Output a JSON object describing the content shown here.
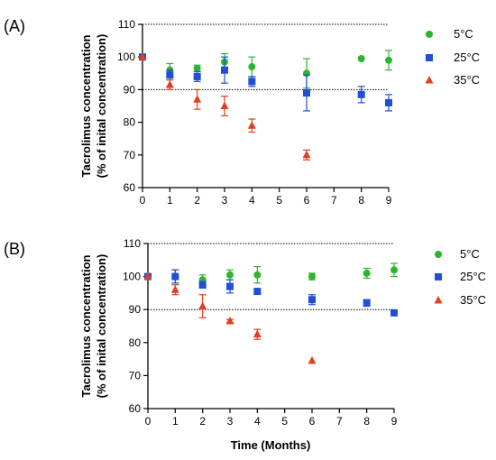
{
  "figure": {
    "x_title": "Time (Months)"
  },
  "chart_data": [
    {
      "panel_label": "(A)",
      "type": "scatter",
      "ylabel_line1": "Tacrolimus concentration",
      "ylabel_line2": "(% of inital concentration)",
      "xlabel": "",
      "xlim": [
        0,
        9
      ],
      "ylim": [
        60,
        110
      ],
      "x_ticks": [
        "0",
        "1",
        "2",
        "3",
        "4",
        "5",
        "6",
        "7",
        "8",
        "9"
      ],
      "y_ticks": [
        "60",
        "70",
        "80",
        "90",
        "100",
        "110"
      ],
      "reference_lines": [
        90,
        110
      ],
      "legend_position": "right",
      "series": [
        {
          "name": "5°C",
          "color": "#2db52d",
          "marker": "circle",
          "points": [
            {
              "x": 0,
              "y": 100,
              "err": 0
            },
            {
              "x": 1,
              "y": 96,
              "err": 2
            },
            {
              "x": 2,
              "y": 96.5,
              "err": 1
            },
            {
              "x": 3,
              "y": 98.5,
              "err": 2.5
            },
            {
              "x": 4,
              "y": 97,
              "err": 3
            },
            {
              "x": 6,
              "y": 95,
              "err": 4.5
            },
            {
              "x": 8,
              "y": 99.5,
              "err": 0
            },
            {
              "x": 9,
              "y": 99,
              "err": 3
            }
          ]
        },
        {
          "name": "25°C",
          "color": "#1f4fd6",
          "marker": "square",
          "points": [
            {
              "x": 0,
              "y": 100,
              "err": 0
            },
            {
              "x": 1,
              "y": 94.5,
              "err": 1.5
            },
            {
              "x": 2,
              "y": 94,
              "err": 1.5
            },
            {
              "x": 3,
              "y": 96,
              "err": 4
            },
            {
              "x": 4,
              "y": 92.5,
              "err": 1.5
            },
            {
              "x": 6,
              "y": 89,
              "err": 5.5
            },
            {
              "x": 8,
              "y": 88.5,
              "err": 2.5
            },
            {
              "x": 9,
              "y": 86,
              "err": 2.5
            }
          ]
        },
        {
          "name": "35°C",
          "color": "#e0401f",
          "marker": "triangle",
          "points": [
            {
              "x": 0,
              "y": 100,
              "err": 0
            },
            {
              "x": 1,
              "y": 91.5,
              "err": 1.5
            },
            {
              "x": 2,
              "y": 87,
              "err": 3
            },
            {
              "x": 3,
              "y": 85,
              "err": 3
            },
            {
              "x": 4,
              "y": 79,
              "err": 2
            },
            {
              "x": 6,
              "y": 70,
              "err": 1.5
            }
          ]
        }
      ]
    },
    {
      "panel_label": "(B)",
      "type": "scatter",
      "ylabel_line1": "Tacrolimus concentration",
      "ylabel_line2": "(% of inital concentration)",
      "xlabel": "Time (Months)",
      "xlim": [
        0,
        9
      ],
      "ylim": [
        60,
        110
      ],
      "x_ticks": [
        "0",
        "1",
        "2",
        "3",
        "4",
        "5",
        "6",
        "7",
        "8",
        "9"
      ],
      "y_ticks": [
        "60",
        "70",
        "80",
        "90",
        "100",
        "110"
      ],
      "reference_lines": [
        90,
        110
      ],
      "legend_position": "right",
      "series": [
        {
          "name": "5°C",
          "color": "#2db52d",
          "marker": "circle",
          "points": [
            {
              "x": 0,
              "y": 100,
              "err": 0
            },
            {
              "x": 1,
              "y": 100,
              "err": 2
            },
            {
              "x": 2,
              "y": 99,
              "err": 1.5
            },
            {
              "x": 3,
              "y": 100.5,
              "err": 1.5
            },
            {
              "x": 4,
              "y": 100.5,
              "err": 2.5
            },
            {
              "x": 6,
              "y": 100,
              "err": 1
            },
            {
              "x": 8,
              "y": 101,
              "err": 1.5
            },
            {
              "x": 9,
              "y": 102,
              "err": 2
            }
          ]
        },
        {
          "name": "25°C",
          "color": "#1f4fd6",
          "marker": "square",
          "points": [
            {
              "x": 0,
              "y": 100,
              "err": 0
            },
            {
              "x": 1,
              "y": 100,
              "err": 2
            },
            {
              "x": 2,
              "y": 97.5,
              "err": 1
            },
            {
              "x": 3,
              "y": 97,
              "err": 2
            },
            {
              "x": 4,
              "y": 95.5,
              "err": 0.5
            },
            {
              "x": 6,
              "y": 93,
              "err": 1.5
            },
            {
              "x": 8,
              "y": 92,
              "err": 1
            },
            {
              "x": 9,
              "y": 89,
              "err": 0
            }
          ]
        },
        {
          "name": "35°C",
          "color": "#e0401f",
          "marker": "triangle",
          "points": [
            {
              "x": 0,
              "y": 100,
              "err": 0
            },
            {
              "x": 1,
              "y": 96,
              "err": 1.5
            },
            {
              "x": 2,
              "y": 91,
              "err": 3.5
            },
            {
              "x": 3,
              "y": 86.5,
              "err": 0.5
            },
            {
              "x": 4,
              "y": 82.5,
              "err": 1.5
            },
            {
              "x": 6,
              "y": 74.5,
              "err": 0
            }
          ]
        }
      ]
    }
  ]
}
